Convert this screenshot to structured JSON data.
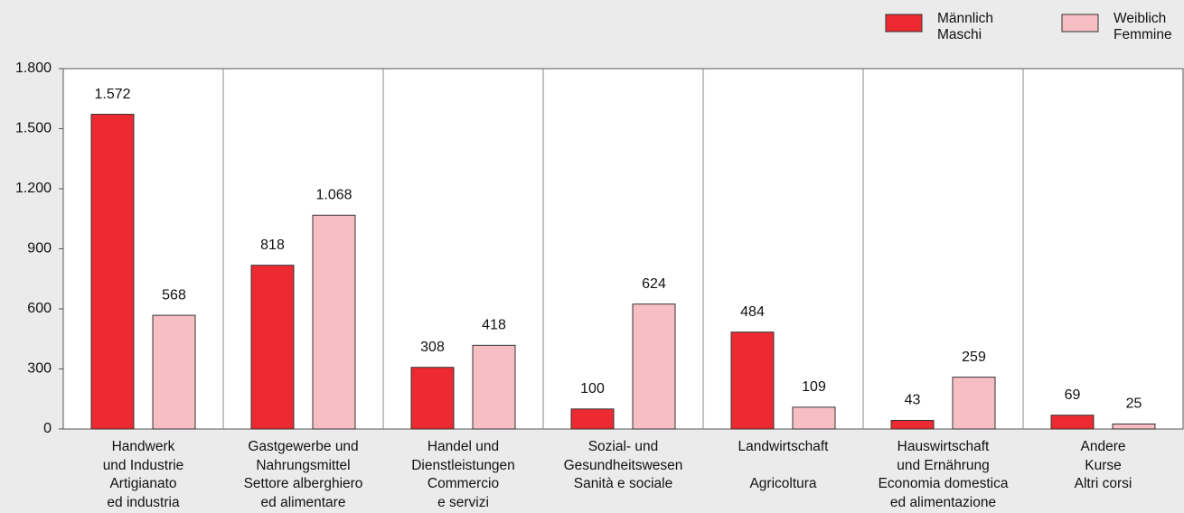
{
  "chart_data": {
    "type": "bar",
    "categories": [
      {
        "de": "Handwerk\nund Industrie",
        "it": "Artigianato\ned industria"
      },
      {
        "de": "Gastgewerbe und\nNahrungsmittel",
        "it": "Settore alberghiero\ned alimentare"
      },
      {
        "de": "Handel und\nDienstleistungen",
        "it": "Commercio\ne servizi"
      },
      {
        "de": "Sozial- und\nGesundheitswesen",
        "it": "Sanità e sociale"
      },
      {
        "de": "Landwirtschaft",
        "it": "Agricoltura"
      },
      {
        "de": "Hauswirtschaft\nund Ernährung",
        "it": "Economia domestica\ned alimentazione"
      },
      {
        "de": "Andere Kurse",
        "it": "Altri corsi"
      }
    ],
    "series": [
      {
        "name": "Männlich\nMaschi",
        "color": "#ed2a32",
        "values": [
          1572,
          818,
          308,
          100,
          484,
          43,
          69
        ],
        "value_labels": [
          "1.572",
          "818",
          "308",
          "100",
          "484",
          "43",
          "69"
        ]
      },
      {
        "name": "Weiblich\nFemmine",
        "color": "#f7bfc3",
        "values": [
          568,
          1068,
          418,
          624,
          109,
          259,
          25
        ],
        "value_labels": [
          "568",
          "1.068",
          "418",
          "624",
          "109",
          "259",
          "25"
        ]
      }
    ],
    "ylim": [
      0,
      1800
    ],
    "yticks": [
      0,
      300,
      600,
      900,
      {
        "value": 1200,
        "label": "1.200"
      },
      {
        "value": 1500,
        "label": "1.500"
      },
      {
        "value": 1800,
        "label": "1.800"
      }
    ],
    "grid": false,
    "legend": "top-right"
  }
}
